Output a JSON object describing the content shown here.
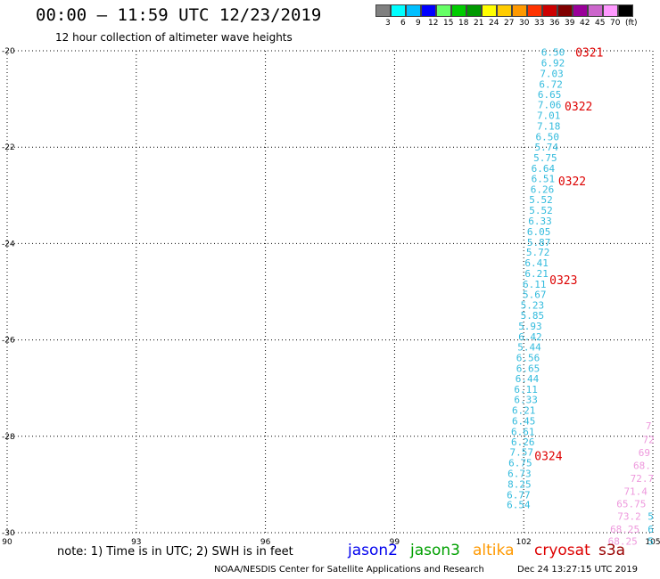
{
  "header": {
    "title": "00:00 – 11:59 UTC 12/23/2019",
    "subtitle": "12 hour collection of altimeter wave heights"
  },
  "legend": {
    "colors": [
      "#808080",
      "#00ffff",
      "#00bfff",
      "#0000ff",
      "#66ff66",
      "#00cc00",
      "#009900",
      "#ffff00",
      "#ffcc00",
      "#ff9900",
      "#ff3300",
      "#cc0000",
      "#800000",
      "#990099",
      "#cc66cc",
      "#ff99ff",
      "#000000"
    ],
    "labels": [
      "3",
      "6",
      "9",
      "12",
      "15",
      "18",
      "21",
      "24",
      "27",
      "30",
      "33",
      "36",
      "39",
      "42",
      "45",
      "70"
    ],
    "unit": "(ft)"
  },
  "map": {
    "x_ticks": [
      "90",
      "93",
      "96",
      "99",
      "102",
      "105"
    ],
    "y_ticks": [
      "-20",
      "-22",
      "-24",
      "-26",
      "-28",
      "-30"
    ],
    "lon_range": [
      90,
      105
    ],
    "lat_range": [
      -30,
      -20
    ],
    "cyan_color": "#33bbdd",
    "pink_color": "#ee99dd",
    "time_color": "#dd0000",
    "cyan_track": [
      {
        "lon": 102.68,
        "lat": -20.03,
        "value": "6.50"
      },
      {
        "lon": 102.68,
        "lat": -20.25,
        "value": "6.92"
      },
      {
        "lon": 102.65,
        "lat": -20.47,
        "value": "7.03"
      },
      {
        "lon": 102.63,
        "lat": -20.69,
        "value": "6.72"
      },
      {
        "lon": 102.6,
        "lat": -20.91,
        "value": "6.65"
      },
      {
        "lon": 102.6,
        "lat": -21.12,
        "value": "7.06"
      },
      {
        "lon": 102.58,
        "lat": -21.34,
        "value": "7.01"
      },
      {
        "lon": 102.58,
        "lat": -21.56,
        "value": "7.18"
      },
      {
        "lon": 102.55,
        "lat": -21.78,
        "value": "6.50"
      },
      {
        "lon": 102.53,
        "lat": -22.0,
        "value": "5.74"
      },
      {
        "lon": 102.5,
        "lat": -22.22,
        "value": "5.75"
      },
      {
        "lon": 102.45,
        "lat": -22.44,
        "value": "6.64"
      },
      {
        "lon": 102.45,
        "lat": -22.65,
        "value": "6.51"
      },
      {
        "lon": 102.43,
        "lat": -22.87,
        "value": "6.26"
      },
      {
        "lon": 102.4,
        "lat": -23.09,
        "value": "5.52"
      },
      {
        "lon": 102.4,
        "lat": -23.31,
        "value": "5.52"
      },
      {
        "lon": 102.38,
        "lat": -23.53,
        "value": "6.33"
      },
      {
        "lon": 102.35,
        "lat": -23.75,
        "value": "6.05"
      },
      {
        "lon": 102.35,
        "lat": -23.97,
        "value": "5.87"
      },
      {
        "lon": 102.33,
        "lat": -24.18,
        "value": "5.72"
      },
      {
        "lon": 102.3,
        "lat": -24.4,
        "value": "6.41"
      },
      {
        "lon": 102.3,
        "lat": -24.62,
        "value": "6.21"
      },
      {
        "lon": 102.25,
        "lat": -24.84,
        "value": "6.11"
      },
      {
        "lon": 102.25,
        "lat": -25.06,
        "value": "5.67"
      },
      {
        "lon": 102.2,
        "lat": -25.28,
        "value": "5.23"
      },
      {
        "lon": 102.2,
        "lat": -25.49,
        "value": "5.85"
      },
      {
        "lon": 102.15,
        "lat": -25.71,
        "value": "5.93"
      },
      {
        "lon": 102.15,
        "lat": -25.93,
        "value": "6.42"
      },
      {
        "lon": 102.13,
        "lat": -26.15,
        "value": "5.44"
      },
      {
        "lon": 102.1,
        "lat": -26.37,
        "value": "6.56"
      },
      {
        "lon": 102.1,
        "lat": -26.59,
        "value": "6.65"
      },
      {
        "lon": 102.08,
        "lat": -26.8,
        "value": "6.44"
      },
      {
        "lon": 102.05,
        "lat": -27.02,
        "value": "6.11"
      },
      {
        "lon": 102.05,
        "lat": -27.24,
        "value": "6.33"
      },
      {
        "lon": 102.0,
        "lat": -27.46,
        "value": "6.21"
      },
      {
        "lon": 102.0,
        "lat": -27.68,
        "value": "6.45"
      },
      {
        "lon": 101.98,
        "lat": -27.9,
        "value": "6.61"
      },
      {
        "lon": 101.98,
        "lat": -28.11,
        "value": "6.26"
      },
      {
        "lon": 101.95,
        "lat": -28.33,
        "value": "7.57"
      },
      {
        "lon": 101.92,
        "lat": -28.55,
        "value": "6.75"
      },
      {
        "lon": 101.9,
        "lat": -28.77,
        "value": "6.73"
      },
      {
        "lon": 101.9,
        "lat": -28.99,
        "value": "8.25"
      },
      {
        "lon": 101.88,
        "lat": -29.21,
        "value": "6.77"
      },
      {
        "lon": 101.88,
        "lat": -29.42,
        "value": "6.54"
      }
    ],
    "pink_track": [
      {
        "lon": 104.9,
        "lat": -27.78,
        "value": "7"
      },
      {
        "lon": 104.9,
        "lat": -28.07,
        "value": "72"
      },
      {
        "lon": 104.8,
        "lat": -28.34,
        "value": "69"
      },
      {
        "lon": 104.75,
        "lat": -28.6,
        "value": "68."
      },
      {
        "lon": 104.75,
        "lat": -28.87,
        "value": "72.7"
      },
      {
        "lon": 104.6,
        "lat": -29.14,
        "value": "71.4"
      },
      {
        "lon": 104.5,
        "lat": -29.4,
        "value": "65.75"
      },
      {
        "lon": 104.45,
        "lat": -29.66,
        "value": "73.2"
      },
      {
        "lon": 104.35,
        "lat": -29.93,
        "value": "68.25"
      },
      {
        "lon": 104.3,
        "lat": -30.18,
        "value": "68.25"
      }
    ],
    "cut_marks": [
      {
        "lon": 104.95,
        "lat": -29.66,
        "value": "5"
      },
      {
        "lon": 104.95,
        "lat": -29.93,
        "value": "6"
      },
      {
        "lon": 104.95,
        "lat": -30.18,
        "value": "5"
      }
    ],
    "time_labels": [
      {
        "lon": 103.2,
        "lat": -20.03,
        "text": "0321"
      },
      {
        "lon": 102.95,
        "lat": -21.15,
        "text": "0322"
      },
      {
        "lon": 102.8,
        "lat": -22.7,
        "text": "0322"
      },
      {
        "lon": 102.6,
        "lat": -24.75,
        "text": "0323"
      },
      {
        "lon": 102.25,
        "lat": -28.4,
        "text": "0324"
      }
    ]
  },
  "footer": {
    "note": "note: 1) Time is in UTC; 2) SWH is in feet",
    "satellites": [
      {
        "name": "jason2",
        "color": "#0000ee"
      },
      {
        "name": "jason3",
        "color": "#00a000"
      },
      {
        "name": "altika",
        "color": "#ff9900"
      },
      {
        "name": "cryosat",
        "color": "#dd0000"
      },
      {
        "name": "s3a",
        "color": "#990000"
      }
    ],
    "credit": "NOAA/NESDIS Center for Satellite Applications and Research",
    "timestamp": "Dec 24 13:27:15 UTC 2019"
  }
}
